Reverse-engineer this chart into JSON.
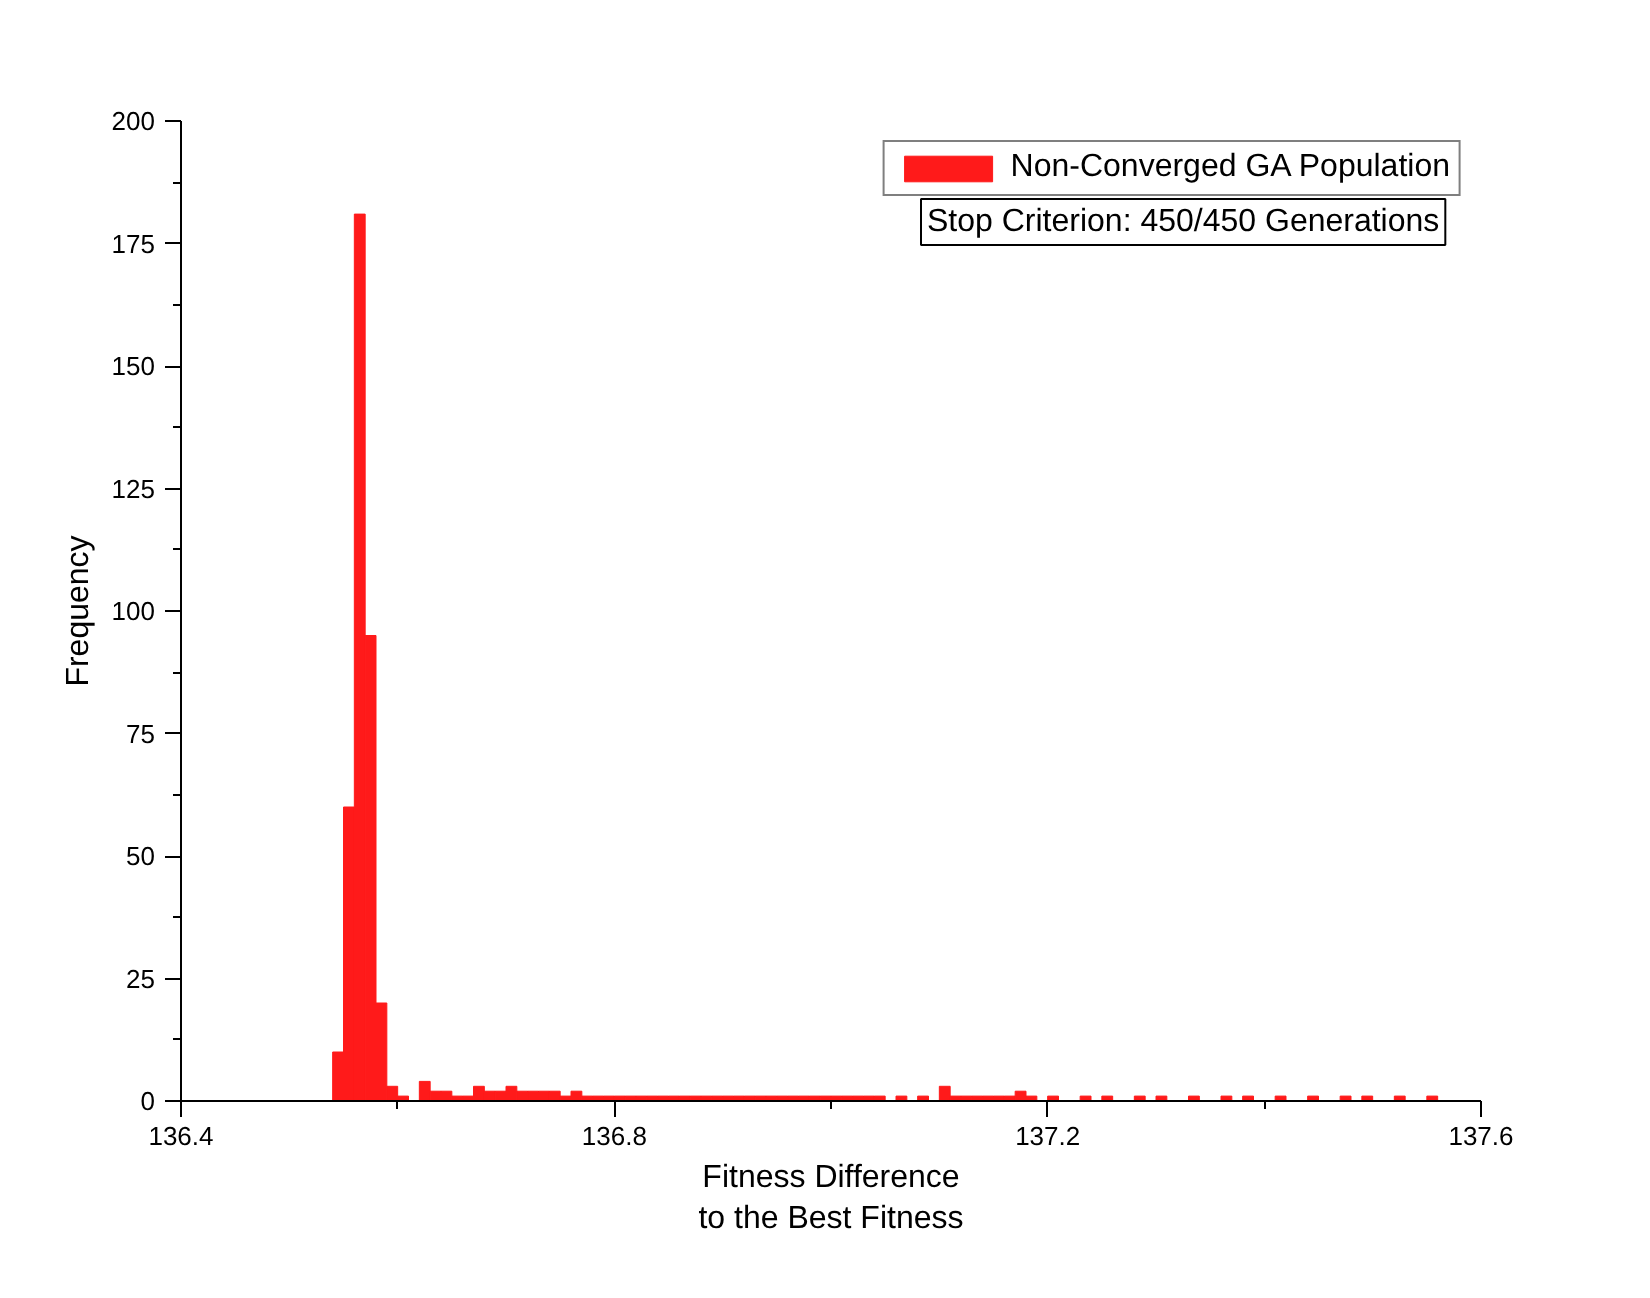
{
  "chart_data": {
    "type": "histogram",
    "xlabel": "Fitness Difference\nto the Best Fitness",
    "ylabel": "Frequency",
    "bins": [
      136.54,
      136.55,
      136.56,
      136.57,
      136.58,
      136.59,
      136.6,
      136.61,
      136.62,
      136.63,
      136.64,
      136.65,
      136.66,
      136.67,
      136.68,
      136.69,
      136.7,
      136.71,
      136.72,
      136.73,
      136.74,
      136.75,
      136.76,
      136.77,
      136.78,
      136.79,
      136.8,
      136.81,
      136.82,
      136.83,
      136.84,
      136.85,
      136.86,
      136.87,
      136.88,
      136.89,
      136.9,
      136.91,
      136.92,
      136.93,
      136.94,
      136.95,
      136.96,
      136.97,
      136.98,
      136.99,
      137.0,
      137.01,
      137.02,
      137.03,
      137.04,
      137.05,
      137.06,
      137.07,
      137.08,
      137.09,
      137.1,
      137.11,
      137.12,
      137.13,
      137.14,
      137.15,
      137.16,
      137.17,
      137.18,
      137.19,
      137.2,
      137.21,
      137.22,
      137.23,
      137.24,
      137.25,
      137.26,
      137.27,
      137.28,
      137.29,
      137.3,
      137.31,
      137.32,
      137.33,
      137.34,
      137.35,
      137.36,
      137.37,
      137.38,
      137.39,
      137.4,
      137.41,
      137.42,
      137.43,
      137.44,
      137.45,
      137.46,
      137.47,
      137.48,
      137.49,
      137.5,
      137.51,
      137.52,
      137.53,
      137.54,
      137.55,
      137.56
    ],
    "series": [
      {
        "name": "Non-Converged GA Population",
        "color": "#ff1a1a",
        "values": [
          10,
          60,
          181,
          95,
          20,
          3,
          1,
          0,
          4,
          2,
          2,
          1,
          1,
          3,
          2,
          2,
          3,
          2,
          2,
          2,
          2,
          1,
          2,
          1,
          1,
          1,
          1,
          1,
          1,
          1,
          1,
          1,
          1,
          1,
          1,
          1,
          1,
          1,
          1,
          1,
          1,
          1,
          1,
          1,
          1,
          1,
          1,
          1,
          1,
          1,
          1,
          0,
          1,
          0,
          1,
          0,
          3,
          1,
          1,
          1,
          1,
          1,
          1,
          2,
          1,
          0,
          1,
          0,
          0,
          1,
          0,
          1,
          0,
          0,
          1,
          0,
          1,
          0,
          0,
          1,
          0,
          0,
          1,
          0,
          1,
          0,
          0,
          1,
          0,
          0,
          1,
          0,
          0,
          1,
          0,
          1,
          0,
          0,
          1,
          0,
          0,
          1
        ]
      }
    ],
    "annotations": [
      "Stop Criterion: 450/450 Generations"
    ],
    "xlim": [
      136.4,
      137.6
    ],
    "xticks": [
      136.4,
      136.8,
      137.2,
      137.6
    ],
    "ylim": [
      0,
      200
    ],
    "yticks": [
      0,
      25,
      50,
      75,
      100,
      125,
      150,
      175,
      200
    ],
    "grid": false,
    "legend": "top right"
  }
}
